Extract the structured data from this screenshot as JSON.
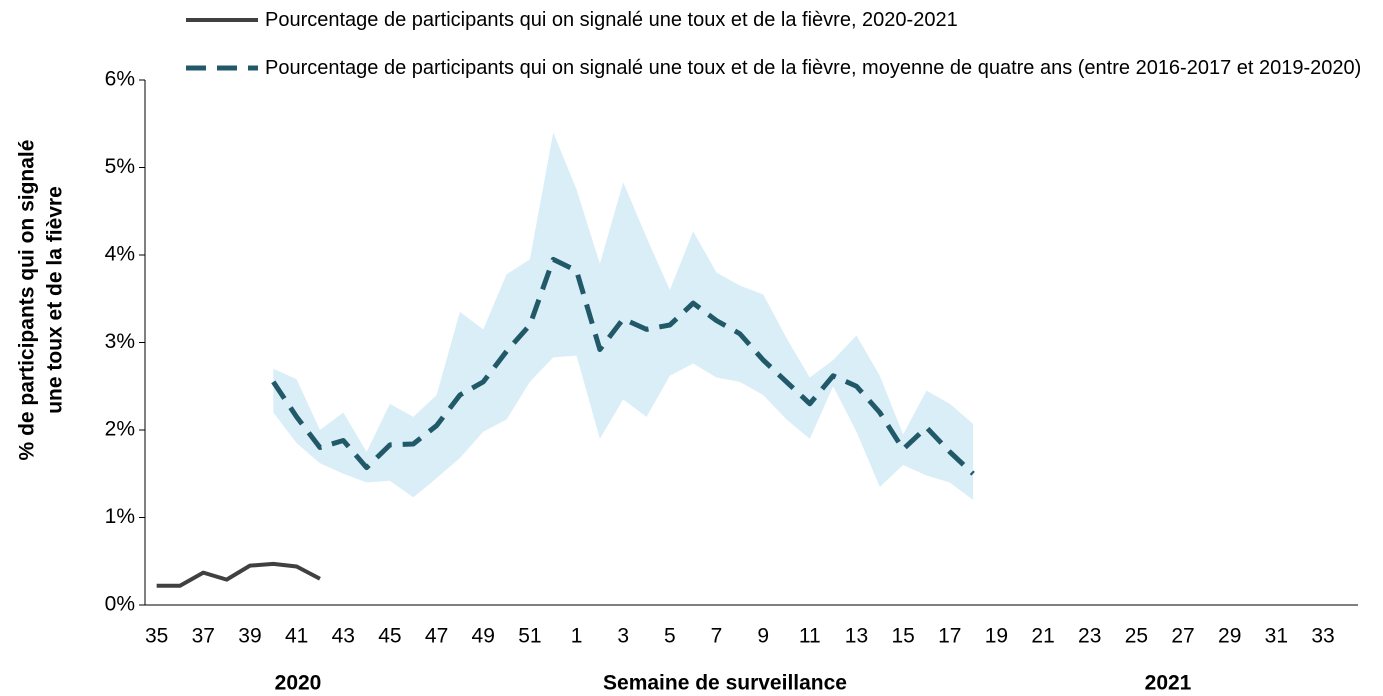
{
  "chart_data": {
    "type": "line",
    "y_label": [
      "% de participants qui on signalé",
      "une toux et de la fièvre"
    ],
    "x_label": "Semaine de surveillance",
    "year_labels": [
      "2020",
      "2021"
    ],
    "categories": [
      "35",
      null,
      "37",
      null,
      "39",
      null,
      "41",
      null,
      "43",
      null,
      "45",
      null,
      "47",
      null,
      "49",
      null,
      "51",
      null,
      "1",
      null,
      "3",
      null,
      "5",
      null,
      "7",
      null,
      "9",
      null,
      "11",
      null,
      "13",
      null,
      "15",
      null,
      "17",
      null,
      "19",
      null,
      "21",
      null,
      "23",
      null,
      "25",
      null,
      "27",
      null,
      "29",
      null,
      "31",
      null,
      "33",
      null
    ],
    "series": [
      {
        "name": "Pourcentage de participants qui on signalé une toux et de la fièvre, 2020-2021",
        "color": "#404040",
        "dash": false,
        "values": [
          0.22,
          0.22,
          0.37,
          0.29,
          0.45,
          0.47,
          0.44,
          0.3,
          null,
          null,
          null,
          null,
          null,
          null,
          null,
          null,
          null,
          null,
          null,
          null,
          null,
          null,
          null,
          null,
          null,
          null,
          null,
          null,
          null,
          null,
          null,
          null,
          null,
          null,
          null,
          null,
          null,
          null,
          null,
          null,
          null,
          null,
          null,
          null,
          null,
          null,
          null,
          null,
          null,
          null,
          null,
          null
        ]
      },
      {
        "name": "Pourcentage de participants qui on signalé une toux et de la fièvre, moyenne de quatre ans (entre 2016-2017 et 2019-2020)",
        "color": "#215968",
        "dash": true,
        "values": [
          null,
          null,
          null,
          null,
          null,
          2.55,
          2.15,
          1.8,
          1.88,
          1.57,
          1.83,
          1.84,
          2.05,
          2.4,
          2.55,
          2.9,
          3.2,
          3.95,
          3.82,
          2.92,
          3.27,
          3.15,
          3.2,
          3.45,
          3.25,
          3.1,
          2.8,
          2.55,
          2.3,
          2.62,
          2.5,
          2.2,
          1.78,
          2.03,
          1.75,
          1.5,
          null,
          null,
          null,
          null,
          null,
          null,
          null,
          null,
          null,
          null,
          null,
          null,
          null,
          null,
          null,
          null
        ]
      }
    ],
    "band": {
      "color": "#daeef7",
      "upper": [
        null,
        null,
        null,
        null,
        null,
        2.7,
        2.58,
        2.0,
        2.2,
        1.75,
        2.3,
        2.15,
        2.4,
        3.35,
        3.15,
        3.78,
        3.95,
        5.4,
        4.75,
        3.9,
        4.83,
        4.2,
        3.6,
        4.27,
        3.8,
        3.65,
        3.55,
        3.05,
        2.6,
        2.8,
        3.08,
        2.62,
        1.95,
        2.45,
        2.3,
        2.07,
        null,
        null,
        null,
        null,
        null,
        null,
        null,
        null,
        null,
        null,
        null,
        null,
        null,
        null,
        null,
        null
      ],
      "lower": [
        null,
        null,
        null,
        null,
        null,
        2.2,
        1.85,
        1.62,
        1.5,
        1.4,
        1.42,
        1.23,
        1.45,
        1.68,
        1.98,
        2.12,
        2.55,
        2.83,
        2.85,
        1.9,
        2.35,
        2.15,
        2.62,
        2.76,
        2.6,
        2.55,
        2.4,
        2.12,
        1.9,
        2.5,
        1.98,
        1.35,
        1.6,
        1.48,
        1.4,
        1.2,
        null,
        null,
        null,
        null,
        null,
        null,
        null,
        null,
        null,
        null,
        null,
        null,
        null,
        null,
        null,
        null
      ]
    },
    "ylim": [
      0,
      6
    ],
    "yticks": [
      {
        "value": 0,
        "label": "0%"
      },
      {
        "value": 1,
        "label": "1%"
      },
      {
        "value": 2,
        "label": "2%"
      },
      {
        "value": 3,
        "label": "3%"
      },
      {
        "value": 4,
        "label": "4%"
      },
      {
        "value": 5,
        "label": "5%"
      },
      {
        "value": 6,
        "label": "6%"
      }
    ],
    "grid": false
  }
}
